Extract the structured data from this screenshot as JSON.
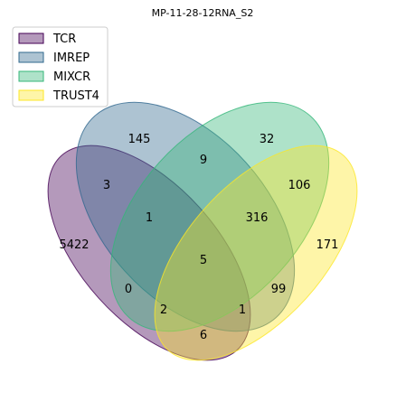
{
  "title": "MP-11-28-12RNA_S2",
  "sets": [
    {
      "name": "TCR",
      "fill": "#440154",
      "stroke": "#440154"
    },
    {
      "name": "IMREP",
      "fill": "#31688E",
      "stroke": "#31688E"
    },
    {
      "name": "MIXCR",
      "fill": "#35B779",
      "stroke": "#35B779"
    },
    {
      "name": "TRUST4",
      "fill": "#FDE725",
      "stroke": "#FDE725"
    }
  ],
  "regions": [
    {
      "sets": [
        "TCR"
      ],
      "value": "5422"
    },
    {
      "sets": [
        "IMREP"
      ],
      "value": "145"
    },
    {
      "sets": [
        "MIXCR"
      ],
      "value": "32"
    },
    {
      "sets": [
        "TRUST4"
      ],
      "value": "171"
    },
    {
      "sets": [
        "TCR",
        "IMREP"
      ],
      "value": "3"
    },
    {
      "sets": [
        "IMREP",
        "MIXCR"
      ],
      "value": "9"
    },
    {
      "sets": [
        "MIXCR",
        "TRUST4"
      ],
      "value": "106"
    },
    {
      "sets": [
        "TCR",
        "IMREP",
        "MIXCR"
      ],
      "value": "1"
    },
    {
      "sets": [
        "IMREP",
        "MIXCR",
        "TRUST4"
      ],
      "value": "316"
    },
    {
      "sets": [
        "TCR",
        "IMREP",
        "MIXCR",
        "TRUST4"
      ],
      "value": "5"
    },
    {
      "sets": [
        "TCR",
        "MIXCR"
      ],
      "value": "0"
    },
    {
      "sets": [
        "IMREP",
        "TRUST4"
      ],
      "value": "99"
    },
    {
      "sets": [
        "TCR",
        "MIXCR",
        "TRUST4"
      ],
      "value": "2"
    },
    {
      "sets": [
        "TCR",
        "IMREP",
        "TRUST4"
      ],
      "value": "1"
    },
    {
      "sets": [
        "TCR",
        "TRUST4"
      ],
      "value": "6"
    }
  ]
}
